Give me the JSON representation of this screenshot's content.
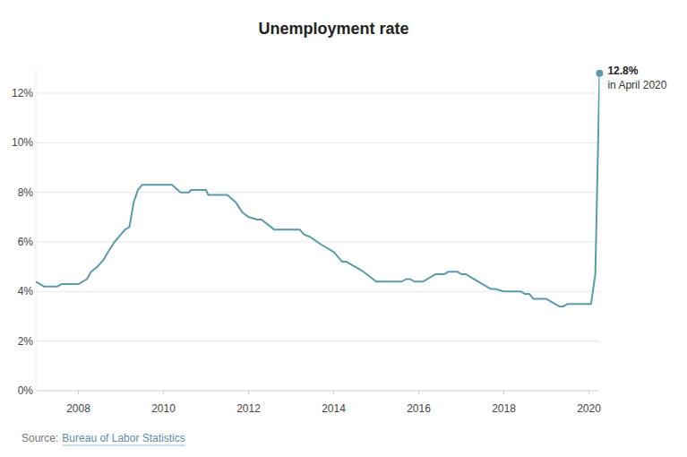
{
  "chart_data": {
    "type": "line",
    "title": "Unemployment rate",
    "x": [
      2007.0,
      2007.1,
      2007.2,
      2007.5,
      2007.6,
      2008.0,
      2008.2,
      2008.3,
      2008.45,
      2008.6,
      2008.7,
      2008.85,
      2009.0,
      2009.1,
      2009.2,
      2009.3,
      2009.4,
      2009.5,
      2010.2,
      2010.4,
      2010.6,
      2010.65,
      2011.0,
      2011.05,
      2011.5,
      2011.7,
      2011.85,
      2012.0,
      2012.2,
      2012.3,
      2012.6,
      2013.2,
      2013.3,
      2013.45,
      2013.7,
      2014.0,
      2014.1,
      2014.2,
      2014.3,
      2014.5,
      2014.7,
      2015.0,
      2015.6,
      2015.7,
      2015.8,
      2015.9,
      2016.1,
      2016.4,
      2016.6,
      2016.7,
      2016.9,
      2017.0,
      2017.1,
      2017.5,
      2017.7,
      2017.8,
      2018.0,
      2018.4,
      2018.5,
      2018.6,
      2018.7,
      2019.0,
      2019.1,
      2019.2,
      2019.3,
      2019.4,
      2019.5,
      2020.05,
      2020.15,
      2020.25
    ],
    "values": [
      4.4,
      4.3,
      4.2,
      4.2,
      4.3,
      4.3,
      4.5,
      4.8,
      5.0,
      5.3,
      5.6,
      6.0,
      6.3,
      6.5,
      6.6,
      7.6,
      8.1,
      8.3,
      8.3,
      8.0,
      8.0,
      8.1,
      8.1,
      7.9,
      7.9,
      7.6,
      7.2,
      7.0,
      6.9,
      6.9,
      6.5,
      6.5,
      6.3,
      6.2,
      5.9,
      5.6,
      5.4,
      5.2,
      5.2,
      5.0,
      4.8,
      4.4,
      4.4,
      4.5,
      4.5,
      4.4,
      4.4,
      4.7,
      4.7,
      4.8,
      4.8,
      4.7,
      4.7,
      4.3,
      4.1,
      4.1,
      4.0,
      4.0,
      3.9,
      3.9,
      3.7,
      3.7,
      3.6,
      3.5,
      3.4,
      3.4,
      3.5,
      3.5,
      4.7,
      12.8
    ],
    "color": "#5b9aac",
    "xlim": [
      2007,
      2020.25
    ],
    "xticks": [
      2008,
      2010,
      2012,
      2014,
      2016,
      2018,
      2020
    ],
    "ylim": [
      0,
      13
    ],
    "yticks": [
      {
        "value": 0,
        "label": "0%"
      },
      {
        "value": 2,
        "label": "2%"
      },
      {
        "value": 4,
        "label": "4%"
      },
      {
        "value": 6,
        "label": "6%"
      },
      {
        "value": 8,
        "label": "8%"
      },
      {
        "value": 10,
        "label": "10%"
      },
      {
        "value": 12,
        "label": "12%"
      }
    ],
    "grid": true,
    "annotations": [
      {
        "x": 2020.25,
        "y": 12.8,
        "label": "12.8%",
        "text": "in April 2020"
      }
    ],
    "source_label": "Source:",
    "source": "Bureau of Labor Statistics"
  }
}
